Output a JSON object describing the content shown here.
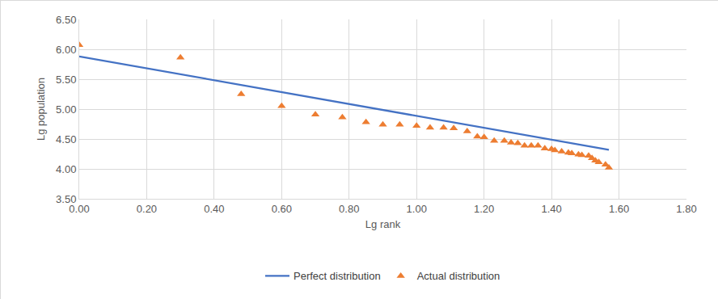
{
  "chart_data": {
    "type": "scatter",
    "x_label": "Lg rank",
    "y_label": "Lg population",
    "xlim": [
      0,
      1.8
    ],
    "xticks": [
      {
        "value": 0,
        "label": "0.00"
      },
      {
        "value": 0.2,
        "label": "0.20"
      },
      {
        "value": 0.4,
        "label": "0.40"
      },
      {
        "value": 0.6,
        "label": "0.60"
      },
      {
        "value": 0.8,
        "label": "0.80"
      },
      {
        "value": 1.0,
        "label": "1.00"
      },
      {
        "value": 1.2,
        "label": "1.20"
      },
      {
        "value": 1.4,
        "label": "1.40"
      },
      {
        "value": 1.6,
        "label": "1.60"
      },
      {
        "value": 1.8,
        "label": "1.80"
      }
    ],
    "ylim": [
      3.5,
      6.5
    ],
    "yticks": [
      {
        "value": 3.5,
        "label": "3.50"
      },
      {
        "value": 4.0,
        "label": "4.00"
      },
      {
        "value": 4.5,
        "label": "4.50"
      },
      {
        "value": 5.0,
        "label": "5.00"
      },
      {
        "value": 5.5,
        "label": "5.50"
      },
      {
        "value": 6.0,
        "label": "6.00"
      },
      {
        "value": 6.5,
        "label": "6.50"
      }
    ],
    "grid": true,
    "legend": "bottom",
    "series": [
      {
        "name": "Perfect distribution",
        "type": "line",
        "color": "#4472c4",
        "line_style": "solid",
        "x": [
          0,
          1.57
        ],
        "values": [
          5.88,
          4.32
        ]
      },
      {
        "name": "Actual distribution",
        "type": "scatter",
        "color": "#ed7d31",
        "marker": "triangle-up",
        "x": [
          0,
          0.3,
          0.48,
          0.6,
          0.7,
          0.78,
          0.85,
          0.9,
          0.95,
          1.0,
          1.04,
          1.08,
          1.11,
          1.15,
          1.18,
          1.2,
          1.23,
          1.26,
          1.28,
          1.3,
          1.32,
          1.34,
          1.36,
          1.38,
          1.4,
          1.41,
          1.43,
          1.45,
          1.46,
          1.48,
          1.49,
          1.51,
          1.52,
          1.53,
          1.54,
          1.56,
          1.57
        ],
        "values": [
          6.07,
          5.86,
          5.25,
          5.05,
          4.91,
          4.86,
          4.78,
          4.74,
          4.74,
          4.72,
          4.69,
          4.69,
          4.68,
          4.63,
          4.54,
          4.53,
          4.47,
          4.47,
          4.44,
          4.43,
          4.39,
          4.39,
          4.39,
          4.34,
          4.33,
          4.31,
          4.29,
          4.27,
          4.26,
          4.24,
          4.23,
          4.22,
          4.18,
          4.14,
          4.11,
          4.07,
          4.02
        ]
      }
    ]
  }
}
